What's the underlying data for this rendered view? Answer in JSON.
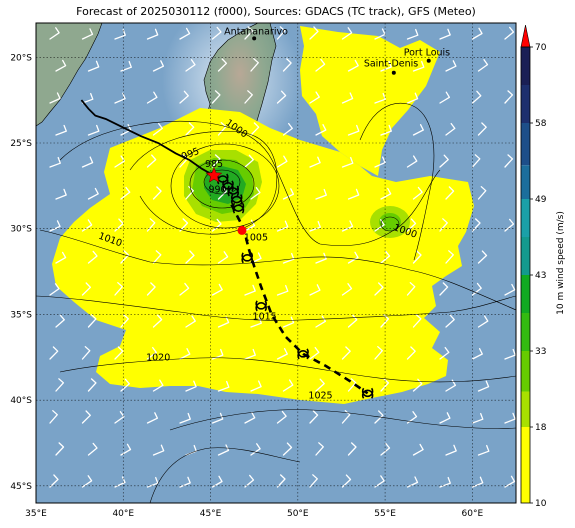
{
  "title": "Forecast of 2025030112 (f000), Sources: GDACS (TC track), GFS (Meteo)",
  "map": {
    "lon_range": [
      35,
      62.5
    ],
    "lat_range": [
      -46,
      -18
    ],
    "lon_ticks": [
      {
        "value": 35,
        "label": "35°E"
      },
      {
        "value": 40,
        "label": "40°E"
      },
      {
        "value": 45,
        "label": "45°E"
      },
      {
        "value": 50,
        "label": "50°E"
      },
      {
        "value": 55,
        "label": "55°E"
      },
      {
        "value": 60,
        "label": "60°E"
      }
    ],
    "lat_ticks": [
      {
        "value": -20,
        "label": "20°S"
      },
      {
        "value": -25,
        "label": "25°S"
      },
      {
        "value": -30,
        "label": "30°S"
      },
      {
        "value": -35,
        "label": "35°S"
      },
      {
        "value": -40,
        "label": "40°S"
      },
      {
        "value": -45,
        "label": "45°S"
      }
    ],
    "ocean_color": "#7aa3c8",
    "land_color": "#8fa88f",
    "places": [
      {
        "name": "Antananarivo",
        "lon": 47.5,
        "lat": -18.9,
        "label_dx": -30,
        "label_dy": -4
      },
      {
        "name": "Port Louis",
        "lon": 57.5,
        "lat": -20.2,
        "label_dx": -25,
        "label_dy": -5
      },
      {
        "name": "Saint-Denis",
        "lon": 55.5,
        "lat": -20.9,
        "label_dx": -30,
        "label_dy": -6
      }
    ],
    "pressure_labels": [
      {
        "text": "1000",
        "lon": 46.4,
        "lat": -24.3,
        "rot": 35
      },
      {
        "text": "995",
        "lon": 43.9,
        "lat": -25.8,
        "rot": -20
      },
      {
        "text": "985",
        "lon": 45.2,
        "lat": -26.4,
        "rot": 0
      },
      {
        "text": "990",
        "lon": 45.4,
        "lat": -27.9,
        "rot": 0
      },
      {
        "text": "1005",
        "lon": 47.6,
        "lat": -30.7,
        "rot": 0
      },
      {
        "text": "1010",
        "lon": 39.2,
        "lat": -30.8,
        "rot": 20
      },
      {
        "text": "1015",
        "lon": 48.1,
        "lat": -35.3,
        "rot": 0
      },
      {
        "text": "1020",
        "lon": 42.0,
        "lat": -37.7,
        "rot": 0
      },
      {
        "text": "1025",
        "lon": 51.3,
        "lat": -39.9,
        "rot": 0
      },
      {
        "text": "1000",
        "lon": 56.1,
        "lat": -30.3,
        "rot": 20
      }
    ],
    "track_observed": [
      [
        37.6,
        -22.5
      ],
      [
        38.0,
        -23.0
      ],
      [
        38.4,
        -23.4
      ],
      [
        39.0,
        -23.6
      ],
      [
        40.0,
        -24.1
      ],
      [
        41.0,
        -24.6
      ],
      [
        42.0,
        -25.0
      ],
      [
        43.0,
        -25.6
      ],
      [
        43.8,
        -26.0
      ],
      [
        44.5,
        -26.5
      ],
      [
        45.2,
        -26.9
      ]
    ],
    "track_forecast": [
      [
        46.2,
        -28.6
      ],
      [
        46.5,
        -29.2
      ],
      [
        46.9,
        -30.0
      ],
      [
        47.2,
        -31.2
      ],
      [
        47.5,
        -32.2
      ],
      [
        47.9,
        -33.4
      ],
      [
        48.5,
        -35.0
      ],
      [
        49.3,
        -36.3
      ],
      [
        50.3,
        -37.3
      ],
      [
        51.6,
        -38.0
      ],
      [
        53.0,
        -38.9
      ],
      [
        54.0,
        -39.6
      ]
    ],
    "storm_symbols": [
      [
        45.7,
        -27.1
      ],
      [
        46.0,
        -27.5
      ],
      [
        46.3,
        -27.8
      ],
      [
        46.5,
        -28.3
      ],
      [
        46.6,
        -28.8
      ],
      [
        47.1,
        -31.7
      ],
      [
        47.9,
        -34.5
      ],
      [
        50.3,
        -37.3
      ],
      [
        54.0,
        -39.6
      ]
    ],
    "current_position": {
      "lon": 45.2,
      "lat": -26.9
    },
    "dissipation_point": {
      "lon": 46.8,
      "lat": -30.1
    }
  },
  "colorbar": {
    "label": "10 m wind speed (m/s)",
    "ticks": [
      {
        "value": 10,
        "label": "10"
      },
      {
        "value": 18,
        "label": "18"
      },
      {
        "value": 33,
        "label": "33"
      },
      {
        "value": 43,
        "label": "43"
      },
      {
        "value": 49,
        "label": "49"
      },
      {
        "value": 58,
        "label": "58"
      },
      {
        "value": 70,
        "label": "70"
      }
    ],
    "bands": [
      {
        "from": 10,
        "to": 18,
        "color": "#ffff00"
      },
      {
        "from": 18,
        "to": 25,
        "color": "#a8e000"
      },
      {
        "from": 25,
        "to": 33,
        "color": "#66cc00"
      },
      {
        "from": 33,
        "to": 38,
        "color": "#33bb11"
      },
      {
        "from": 38,
        "to": 43,
        "color": "#11aa22"
      },
      {
        "from": 43,
        "to": 46,
        "color": "#139a8e"
      },
      {
        "from": 46,
        "to": 49,
        "color": "#1aa0a8"
      },
      {
        "from": 49,
        "to": 53,
        "color": "#1c6e9c"
      },
      {
        "from": 53,
        "to": 58,
        "color": "#1d4e89"
      },
      {
        "from": 58,
        "to": 64,
        "color": "#1d2f6e"
      },
      {
        "from": 64,
        "to": 70,
        "color": "#1a1f55"
      }
    ],
    "extend_color": "#ff0000"
  }
}
